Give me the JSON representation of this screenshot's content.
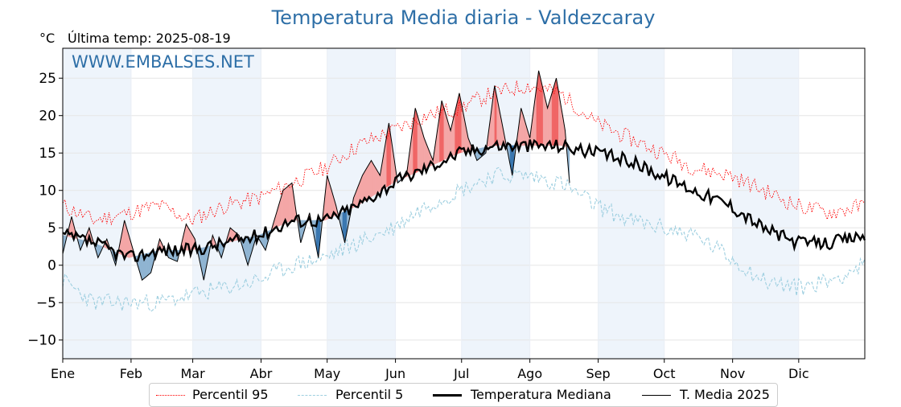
{
  "header": {
    "title": "Temperatura Media diaria - Valdezcaray",
    "unit": "°C",
    "last_temp": "Última temp: 2025-08-19",
    "watermark": "WWW.EMBALSES.NET"
  },
  "legend": [
    {
      "label": "Percentil 95",
      "color": "#ff0000",
      "style": "dotted"
    },
    {
      "label": "Percentil 5",
      "color": "#9ecfe0",
      "style": "dashed"
    },
    {
      "label": "Temperatura Mediana",
      "color": "#000000",
      "style": "thick"
    },
    {
      "label": "T. Media 2025",
      "color": "#000000",
      "style": "thin"
    }
  ],
  "colors": {
    "above_fill": "#f4a6a6",
    "above_strong": "#f06565",
    "below_fill": "#8fb4d2",
    "below_strong": "#3a77b0",
    "band": "#eef4fb",
    "title": "#2e6fa7"
  },
  "chart_data": {
    "type": "line",
    "ylim": [
      -12.5,
      29
    ],
    "yticks": [
      -10,
      -5,
      0,
      5,
      10,
      15,
      20,
      25
    ],
    "ytick_labels": [
      "−10",
      "−5",
      "0",
      "5",
      "10",
      "15",
      "20",
      "25"
    ],
    "xlim": [
      1,
      365
    ],
    "months": [
      "Ene",
      "Feb",
      "Mar",
      "Abr",
      "May",
      "Jun",
      "Jul",
      "Ago",
      "Sep",
      "Oct",
      "Nov",
      "Dic"
    ],
    "month_starts": [
      1,
      32,
      60,
      91,
      121,
      152,
      182,
      213,
      244,
      274,
      305,
      335
    ],
    "grid": true,
    "legend_position": "bottom",
    "series": [
      {
        "name": "Percentil 95",
        "x": [
          1,
          15,
          31,
          45,
          59,
          75,
          90,
          105,
          120,
          135,
          151,
          166,
          181,
          196,
          212,
          227,
          243,
          258,
          273,
          288,
          304,
          319,
          334,
          349,
          365
        ],
        "y": [
          8,
          6,
          7,
          8,
          6,
          8,
          9,
          11,
          13,
          16,
          18,
          20,
          21,
          23,
          24,
          23,
          19,
          17,
          15,
          13,
          12,
          10,
          8,
          7,
          8
        ]
      },
      {
        "name": "Percentil 5",
        "x": [
          1,
          15,
          31,
          45,
          59,
          75,
          90,
          105,
          120,
          135,
          151,
          166,
          181,
          196,
          212,
          227,
          243,
          258,
          273,
          288,
          304,
          319,
          334,
          349,
          365
        ],
        "y": [
          -2,
          -5,
          -5,
          -5,
          -4,
          -3,
          -2,
          0,
          1,
          3,
          5,
          8,
          10,
          12,
          12,
          11,
          8,
          6,
          5,
          4,
          1,
          -2,
          -3,
          -2,
          0
        ]
      },
      {
        "name": "Temperatura Mediana",
        "x": [
          1,
          15,
          31,
          45,
          59,
          75,
          90,
          105,
          120,
          135,
          151,
          166,
          181,
          196,
          212,
          227,
          243,
          258,
          273,
          288,
          304,
          319,
          334,
          349,
          365
        ],
        "y": [
          4,
          3,
          1,
          2,
          2,
          3,
          4,
          6,
          6,
          8,
          11,
          13,
          15,
          16,
          16,
          16,
          15,
          14,
          12,
          10,
          8,
          5,
          3,
          3,
          4
        ]
      },
      {
        "name": "T. Media 2025",
        "x": [
          1,
          5,
          9,
          13,
          17,
          21,
          25,
          29,
          33,
          37,
          41,
          45,
          49,
          53,
          57,
          61,
          65,
          69,
          73,
          77,
          81,
          85,
          89,
          93,
          97,
          101,
          105,
          109,
          113,
          117,
          121,
          125,
          129,
          133,
          137,
          141,
          145,
          149,
          153,
          157,
          161,
          165,
          169,
          173,
          177,
          181,
          185,
          189,
          193,
          197,
          201,
          205,
          209,
          213,
          217,
          221,
          225,
          229,
          231
        ],
        "y": [
          1.5,
          6.5,
          2,
          5,
          1,
          3.5,
          0,
          6,
          2,
          -2,
          -1,
          3.5,
          1,
          0.5,
          5.5,
          3.5,
          -2,
          4,
          1,
          5,
          4,
          0,
          4,
          2,
          6,
          10,
          11,
          3,
          7,
          1,
          12,
          8,
          3,
          9,
          12,
          14,
          12,
          19,
          11,
          12,
          21,
          17,
          14,
          22,
          18,
          23,
          17,
          14,
          15,
          24,
          18,
          12,
          21,
          17,
          26,
          21,
          25,
          18,
          11
        ]
      }
    ]
  }
}
